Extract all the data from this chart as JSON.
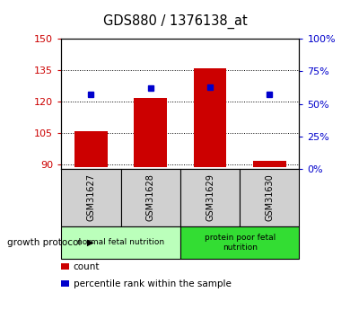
{
  "title": "GDS880 / 1376138_at",
  "samples": [
    "GSM31627",
    "GSM31628",
    "GSM31629",
    "GSM31630"
  ],
  "count_values": [
    106,
    122,
    136,
    92
  ],
  "percentile_values": [
    57,
    62,
    63,
    57
  ],
  "ylim_left": [
    88,
    150
  ],
  "ylim_right": [
    0,
    100
  ],
  "yticks_left": [
    90,
    105,
    120,
    135,
    150
  ],
  "yticks_right": [
    0,
    25,
    50,
    75,
    100
  ],
  "bar_color": "#cc0000",
  "dot_color": "#0000cc",
  "bar_bottom": 89,
  "groups": [
    {
      "label": "normal fetal nutrition",
      "samples": [
        0,
        1
      ],
      "color": "#bbffbb"
    },
    {
      "label": "protein poor fetal\nnutrition",
      "samples": [
        2,
        3
      ],
      "color": "#33dd33"
    }
  ],
  "group_protocol_label": "growth protocol",
  "legend_count_label": "count",
  "legend_pct_label": "percentile rank within the sample",
  "tick_label_color_left": "#cc0000",
  "tick_label_color_right": "#0000cc",
  "bar_width": 0.55,
  "sample_box_color": "#d0d0d0",
  "fig_width": 3.9,
  "fig_height": 3.45,
  "dpi": 100
}
